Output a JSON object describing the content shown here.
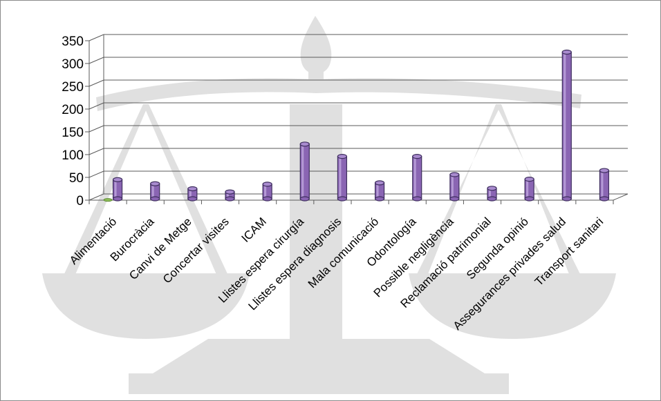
{
  "chart_data": {
    "type": "bar",
    "categories": [
      "Alimentació",
      "Burocràcia",
      "Canvi de  Metge",
      "Concertar visites",
      "ICAM",
      "Llistes espera cirurgía",
      "Llistes espera diagnosis",
      "Mala comunicació",
      "Odontología",
      "Possible negligència",
      "Reclamació patrimonial",
      "Segunda opinió",
      "Assegurances privades salud",
      "Transport sanitari"
    ],
    "series": [
      {
        "name": "",
        "color": "#8a65b3",
        "values": [
          42,
          33,
          22,
          15,
          32,
          120,
          93,
          35,
          93,
          53,
          23,
          43,
          322,
          62
        ]
      },
      {
        "name": "",
        "color": "#8fbf5a",
        "values": [
          2,
          0,
          0,
          0,
          0,
          0,
          0,
          0,
          0,
          0,
          0,
          0,
          0,
          0
        ]
      }
    ],
    "yticks": [
      0,
      50,
      100,
      150,
      200,
      250,
      300,
      350
    ],
    "ylim": [
      0,
      350
    ],
    "grid": true,
    "legend": "none",
    "title": "",
    "xlabel": "",
    "ylabel": ""
  },
  "colors": {
    "background": "#ffffff",
    "watermark": "#e0e0e0",
    "grid": "#5a5a5a"
  },
  "watermark_icon": "scales-of-justice-icon"
}
